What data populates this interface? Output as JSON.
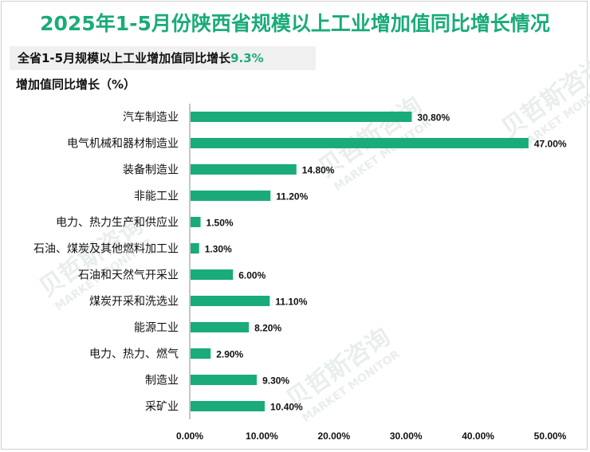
{
  "page": {
    "title": "2025年1-5月份陕西省规模以上工业增加值同比增长情况",
    "summary_prefix": "全省1-5月规模以上工业增加值同比增长",
    "summary_value": "9.3%",
    "unit_label": "增加值同比增长（%）",
    "watermark_cn": "贝哲斯咨询",
    "watermark_en": "MARKET MONITOR"
  },
  "colors": {
    "bar": "#1aab7a",
    "title": "#1aab7a",
    "axis": "#8c8c8c"
  },
  "chart_data": {
    "type": "bar",
    "orientation": "horizontal",
    "title": "2025年1-5月份陕西省规模以上工业增加值同比增长情况",
    "ylabel": "增加值同比增长（%）",
    "categories": [
      "汽车制造业",
      "电气机械和器材制造业",
      "装备制造业",
      "非能工业",
      "电力、热力生产和供应业",
      "石油、煤炭及其他燃料加工业",
      "石油和天然气开采业",
      "煤炭开采和洗选业",
      "能源工业",
      "电力、热力、燃气",
      "制造业",
      "采矿业"
    ],
    "values": [
      30.8,
      47.0,
      14.8,
      11.2,
      1.5,
      1.3,
      6.0,
      11.1,
      8.2,
      2.9,
      9.3,
      10.4
    ],
    "value_labels": [
      "30.80%",
      "47.00%",
      "14.80%",
      "11.20%",
      "1.50%",
      "1.30%",
      "6.00%",
      "11.10%",
      "8.20%",
      "2.90%",
      "9.30%",
      "10.40%"
    ],
    "xlim": [
      0,
      50
    ],
    "xticks": [
      0,
      10,
      20,
      30,
      40,
      50
    ],
    "xtick_labels": [
      "0.00%",
      "10.00%",
      "20.00%",
      "30.00%",
      "40.00%",
      "50.00%"
    ],
    "grid": false,
    "legend": "none"
  }
}
